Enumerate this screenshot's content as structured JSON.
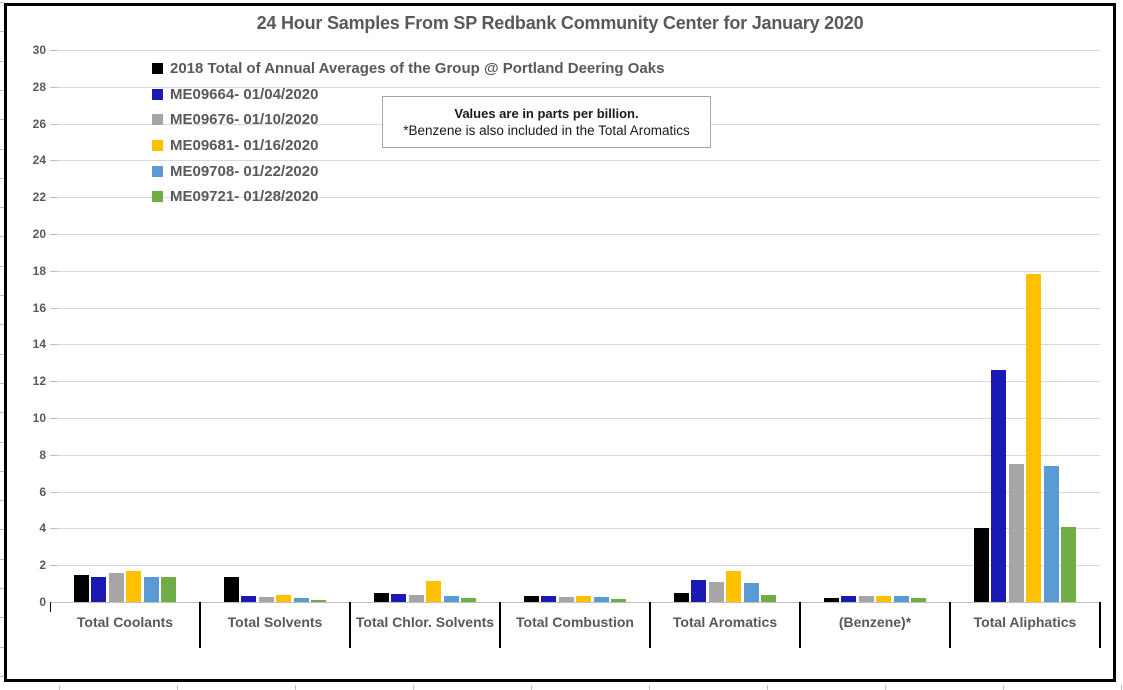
{
  "chart": {
    "title": "24 Hour Samples From SP Redbank Community Center for January 2020",
    "note": {
      "line1": "Values are in parts per billion.",
      "line2": "*Benzene is also included in the Total Aromatics"
    }
  },
  "chart_data": {
    "type": "bar",
    "title": "24 Hour Samples From SP Redbank Community Center for January 2020",
    "units": "parts per billion",
    "categories": [
      "Total Coolants",
      "Total Solvents",
      "Total Chlor. Solvents",
      "Total Combustion",
      "Total Aromatics",
      "(Benzene)*",
      "Total Aliphatics"
    ],
    "series": [
      {
        "name": "2018 Total of Annual Averages of the Group @ Portland Deering Oaks",
        "color": "#000000",
        "values": [
          1.45,
          1.35,
          0.5,
          0.3,
          0.5,
          0.2,
          4.0
        ]
      },
      {
        "name": "ME09664- 01/04/2020",
        "color": "#1A1AB2",
        "values": [
          1.35,
          0.35,
          0.45,
          0.3,
          1.2,
          0.3,
          12.6
        ]
      },
      {
        "name": "ME09676- 01/10/2020",
        "color": "#A6A6A6",
        "values": [
          1.55,
          0.25,
          0.4,
          0.25,
          1.1,
          0.3,
          7.5
        ]
      },
      {
        "name": "ME09681- 01/16/2020",
        "color": "#FFC000",
        "values": [
          1.7,
          0.4,
          1.15,
          0.35,
          1.7,
          0.35,
          17.8
        ]
      },
      {
        "name": "ME09708- 01/22/2020",
        "color": "#5B9BD5",
        "values": [
          1.35,
          0.2,
          0.3,
          0.25,
          1.05,
          0.3,
          7.4
        ]
      },
      {
        "name": "ME09721- 01/28/2020",
        "color": "#70AD47",
        "values": [
          1.35,
          0.1,
          0.2,
          0.15,
          0.4,
          0.2,
          4.1
        ]
      }
    ],
    "ylim": [
      0,
      30
    ],
    "ytick_step": 2,
    "grid": true,
    "legend_position": "top-left",
    "annotations": [
      "Values are in parts per billion.",
      "*Benzene is also included in the Total Aromatics"
    ]
  }
}
